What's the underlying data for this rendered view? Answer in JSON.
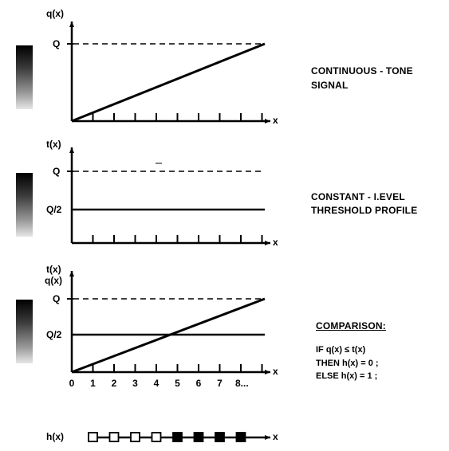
{
  "panel1": {
    "y_axis_label": "q(x)",
    "x_axis_label": "x",
    "level_label": "Q",
    "caption_line1": "CONTINUOUS - TONE",
    "caption_line2": "SIGNAL"
  },
  "panel2": {
    "y_axis_label": "t(x)",
    "x_axis_label": "x",
    "level_label": "Q",
    "half_level_label": "Q/2",
    "caption_line1": "CONSTANT - I.EVEL",
    "caption_line2": "THRESHOLD PROFILE"
  },
  "panel3": {
    "y_axis_label_line1": "t(x)",
    "y_axis_label_line2": "q(x)",
    "x_axis_label": "x",
    "level_label": "Q",
    "half_level_label": "Q/2",
    "x_tick_labels": [
      "0",
      "1",
      "2",
      "3",
      "4",
      "5",
      "6",
      "7",
      "8..."
    ],
    "caption_title": "COMPARISON:",
    "condition_line1": "IF  q(x)  ≤  t(x)",
    "condition_line2": "THEN  h(x) = 0 ;",
    "condition_line3": "ELSE  h(x) = 1 ;"
  },
  "output_row": {
    "y_axis_label": "h(x)",
    "x_axis_label": "x",
    "binary_values": [
      0,
      0,
      0,
      0,
      1,
      1,
      1,
      1
    ]
  }
}
